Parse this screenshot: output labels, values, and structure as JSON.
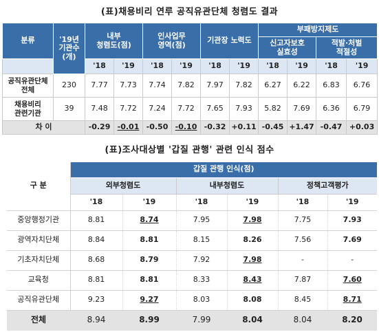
{
  "table1": {
    "title": "(표)채용비리 연루 공직유관단체 청렴도 결과",
    "col_category": "분류",
    "col_count_l1": "'19년",
    "col_count_l2": "기관수",
    "col_count_l3": "(개)",
    "col_internal_l1": "내부",
    "col_internal_l2": "청렴도(점)",
    "col_hr_l1": "인사업무",
    "col_hr_l2": "영역(점)",
    "col_leader": "기관장 노력도",
    "col_anti": "부패방지제도",
    "col_report_l1": "신고자보호",
    "col_report_l2": "실효성",
    "col_punish_l1": "적발·처벌",
    "col_punish_l2": "적절성",
    "years": [
      "'18",
      "'19",
      "'18",
      "'19",
      "'18",
      "'19",
      "'18",
      "'19",
      "'18",
      "'19"
    ],
    "rows": [
      {
        "name_l1": "공직유관단체",
        "name_l2": "전체",
        "count": "230",
        "values": [
          "7.77",
          "7.73",
          "7.74",
          "7.82",
          "7.97",
          "7.82",
          "6.27",
          "6.22",
          "6.83",
          "6.76"
        ]
      },
      {
        "name_l1": "채용비리",
        "name_l2": "관련기관",
        "count": "39",
        "values": [
          "7.48",
          "7.72",
          "7.24",
          "7.72",
          "7.65",
          "7.93",
          "5.82",
          "7.69",
          "6.36",
          "6.79"
        ]
      }
    ],
    "diff_label": "차 이",
    "diff_values": [
      "-0.29",
      "-0.01",
      "-0.50",
      "-0.10",
      "-0.32",
      "+0.11",
      "-0.45",
      "+1.47",
      "-0.47",
      "+0.03"
    ]
  },
  "table2": {
    "title": "(표)조사대상별 '갑질 관행' 관련 인식 점수",
    "row_header": "구 분",
    "group_header": "갑질 관행 인식(점)",
    "sub_headers": [
      "외부청렴도",
      "내부청렴도",
      "정책고객평가"
    ],
    "years": [
      "'18",
      "'19",
      "'18",
      "'19",
      "'18",
      "'19"
    ],
    "rows": [
      {
        "name": "중앙행정기관",
        "values": [
          "8.81",
          "8.74",
          "7.95",
          "7.98",
          "7.75",
          "7.93"
        ]
      },
      {
        "name": "광역자치단체",
        "values": [
          "8.84",
          "8.81",
          "8.15",
          "8.26",
          "7.56",
          "7.69"
        ]
      },
      {
        "name": "기초자치단체",
        "values": [
          "8.68",
          "8.79",
          "7.92",
          "7.98",
          "-",
          "-"
        ]
      },
      {
        "name": "교육청",
        "values": [
          "8.81",
          "8.81",
          "8.33",
          "8.43",
          "7.87",
          "7.60"
        ]
      },
      {
        "name": "공직유관단체",
        "values": [
          "9.23",
          "9.27",
          "8.03",
          "8.08",
          "8.45",
          "8.71"
        ]
      }
    ],
    "total_label": "전체",
    "total_values": [
      "8.94",
      "8.99",
      "7.99",
      "8.04",
      "8.04",
      "8.20"
    ]
  }
}
